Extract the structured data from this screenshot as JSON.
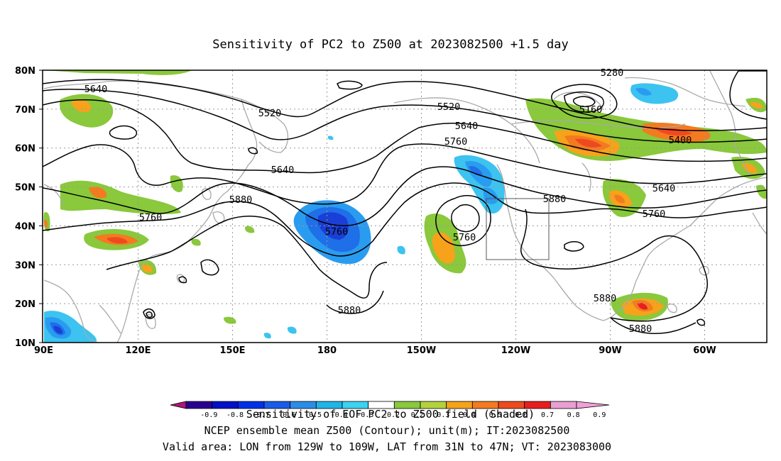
{
  "title": "Sensitivity of PC2 to Z500 at 2023082500 +1.5 day",
  "map": {
    "lat_labels": [
      "80N",
      "70N",
      "60N",
      "50N",
      "40N",
      "30N",
      "20N",
      "10N"
    ],
    "lon_labels": [
      "90E",
      "120E",
      "150E",
      "180",
      "150W",
      "120W",
      "90W",
      "60W"
    ],
    "contour_labels": [
      {
        "text": "5280"
      },
      {
        "text": "5160"
      },
      {
        "text": "5400"
      },
      {
        "text": "5520"
      },
      {
        "text": "5520"
      },
      {
        "text": "5640"
      },
      {
        "text": "5640"
      },
      {
        "text": "5640"
      },
      {
        "text": "5640"
      },
      {
        "text": "5760"
      },
      {
        "text": "5760"
      },
      {
        "text": "5760"
      },
      {
        "text": "5760"
      },
      {
        "text": "5760"
      },
      {
        "text": "5880"
      },
      {
        "text": "5880"
      },
      {
        "text": "5880"
      },
      {
        "text": "5880"
      },
      {
        "text": "5880"
      }
    ],
    "valid_box": {
      "lon_from": "129W",
      "lon_to": "109W",
      "lat_from": "31N",
      "lat_to": "47N"
    },
    "colors": {
      "positive": [
        "#8ac83c",
        "#f7a21b",
        "#f47a20",
        "#ee4a1f",
        "#e81e1e"
      ],
      "negative": [
        "#1a3fd6",
        "#1f6fe8",
        "#2a9cf0",
        "#3cc3f0"
      ],
      "contour": "#000000",
      "coast": "#a9a9a9",
      "grid": "#9a9a9a"
    }
  },
  "colorbar": {
    "labels": [
      "-0.9",
      "-0.8",
      "-0.7",
      "-0.6",
      "-0.5",
      "-0.4",
      "-0.3",
      "-0.2",
      "0.2",
      "0.3",
      "0.4",
      "0.5",
      "0.6",
      "0.7",
      "0.8",
      "0.9"
    ],
    "colors": [
      "#2b0090",
      "#0010c8",
      "#0030e8",
      "#1a5ce8",
      "#2b8ce8",
      "#1fb4e8",
      "#3cd2f0",
      "#ffffff",
      "#8ac83c",
      "#b4d23c",
      "#f7a21b",
      "#f47a20",
      "#ee4a1f",
      "#e81e1e",
      "#e8a0d0"
    ],
    "left_arrow": "#b0157a",
    "right_arrow": "#f0a0d8"
  },
  "caption": {
    "line1": "Sensitivity of EOF PC2 to Z500 field (Shaded)",
    "line2": "NCEP ensemble mean Z500 (Contour); unit(m); IT:2023082500",
    "line3": "Valid area: LON from 129W to 109W, LAT from 31N to 47N; VT: 2023083000"
  }
}
